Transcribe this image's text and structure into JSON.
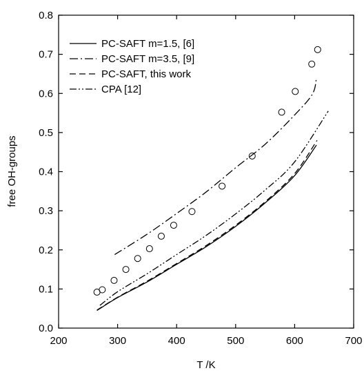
{
  "chart_data": {
    "type": "line",
    "title": "",
    "xlabel": "T /K",
    "ylabel": "free OH-groups",
    "xlim": [
      200,
      700
    ],
    "ylim": [
      0.0,
      0.8
    ],
    "xticks": [
      200,
      300,
      400,
      500,
      600,
      700
    ],
    "yticks": [
      0.0,
      0.1,
      0.2,
      0.3,
      0.4,
      0.5,
      0.6,
      0.7,
      0.8
    ],
    "xtick_labels": [
      "200",
      "300",
      "400",
      "500",
      "600",
      "700"
    ],
    "ytick_labels": [
      "0.0",
      "0.1",
      "0.2",
      "0.3",
      "0.4",
      "0.5",
      "0.6",
      "0.7",
      "0.8"
    ],
    "grid": false,
    "legend_position": "top-left",
    "series": [
      {
        "name": "PC-SAFT m=1.5, [6]",
        "style": "solid",
        "x": [
          265,
          300,
          350,
          400,
          450,
          500,
          550,
          600,
          637
        ],
        "y": [
          0.045,
          0.078,
          0.118,
          0.163,
          0.208,
          0.26,
          0.32,
          0.39,
          0.468
        ]
      },
      {
        "name": "PC-SAFT m=3.5, [9]",
        "style": "dashdot",
        "x": [
          295,
          350,
          400,
          450,
          500,
          550,
          600,
          630,
          637
        ],
        "y": [
          0.188,
          0.24,
          0.293,
          0.348,
          0.41,
          0.47,
          0.545,
          0.598,
          0.64
        ]
      },
      {
        "name": "PC-SAFT, this work",
        "style": "dashed",
        "x": [
          265,
          300,
          350,
          400,
          450,
          500,
          550,
          600,
          638
        ],
        "y": [
          0.046,
          0.079,
          0.12,
          0.165,
          0.211,
          0.263,
          0.323,
          0.395,
          0.48
        ]
      },
      {
        "name": "CPA [12]",
        "style": "dashdotdot",
        "x": [
          270,
          300,
          350,
          400,
          450,
          500,
          550,
          600,
          657
        ],
        "y": [
          0.058,
          0.093,
          0.139,
          0.188,
          0.237,
          0.292,
          0.353,
          0.425,
          0.555
        ]
      },
      {
        "name": "",
        "style": "markers",
        "x": [
          265,
          274,
          294,
          314,
          334,
          354,
          374,
          395,
          426,
          477,
          528,
          578,
          601,
          629,
          639
        ],
        "y": [
          0.092,
          0.098,
          0.122,
          0.15,
          0.178,
          0.203,
          0.235,
          0.263,
          0.298,
          0.363,
          0.44,
          0.552,
          0.605,
          0.675,
          0.712
        ]
      }
    ]
  }
}
